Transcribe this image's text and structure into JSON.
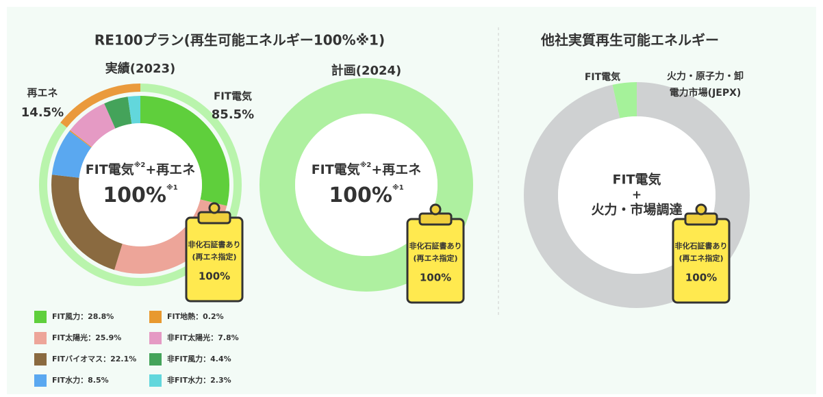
{
  "sections": [
    {
      "title": "RE100プラン(再生可能エネルギー100%※1)"
    },
    {
      "title": "他社実質再生可能エネルギー"
    }
  ],
  "legend_separator": "：",
  "chart_data": [
    {
      "type": "donut",
      "title": "実績(2023)",
      "categories": [
        "FIT風力",
        "FIT太陽光",
        "FITバイオマス",
        "FIT水力",
        "FIT地熱",
        "非FIT太陽光",
        "非FIT風力",
        "非FIT水力"
      ],
      "values": [
        28.8,
        25.9,
        22.1,
        8.5,
        0.2,
        7.8,
        4.4,
        2.3
      ],
      "value_labels": [
        "28.8%",
        "25.9%",
        "22.1%",
        "8.5%",
        "0.2%",
        "7.8%",
        "4.4%",
        "2.3%"
      ],
      "colors": [
        "#5fcf3c",
        "#eda599",
        "#8a6a40",
        "#5aa8f0",
        "#e8992f",
        "#e59ac4",
        "#44a35a",
        "#62d7dc"
      ],
      "outer": {
        "categories": [
          "FIT電気",
          "再エネ"
        ],
        "values": [
          85.5,
          14.5
        ],
        "value_labels": [
          "85.5%",
          "14.5%"
        ],
        "colors": [
          "#b9f4ac",
          "#ea9a3c"
        ]
      },
      "center": {
        "label": "FIT電気",
        "note": "※2",
        "label2": "+再エネ",
        "value": 100,
        "value_label": "100%",
        "value_note": "※1"
      },
      "badge": {
        "line1": "非化石証書あり",
        "line2": "(再エネ指定)",
        "value": 100,
        "value_label": "100%"
      }
    },
    {
      "type": "donut",
      "title": "計画(2024)",
      "values": [
        100
      ],
      "colors": [
        "#aef0a0"
      ],
      "center": {
        "label": "FIT電気",
        "note": "※2",
        "label2": "+再エネ",
        "value": 100,
        "value_label": "100%",
        "value_note": "※1"
      },
      "badge": {
        "line1": "非化石証書あり",
        "line2": "(再エネ指定)",
        "value": 100,
        "value_label": "100%"
      }
    },
    {
      "type": "donut",
      "categories": [
        "FIT電気",
        "火力・原子力・卸電力市場(JEPX)"
      ],
      "values": [
        3.5,
        96.5
      ],
      "colors": [
        "#a5f29a",
        "#cfd1d2"
      ],
      "center": {
        "label": "FIT電気",
        "label2": "+",
        "label3": "火力・市場調達"
      },
      "badge": {
        "line1": "非化石証書あり",
        "line2": "(再エネ指定)",
        "value": 100,
        "value_label": "100%"
      }
    }
  ]
}
